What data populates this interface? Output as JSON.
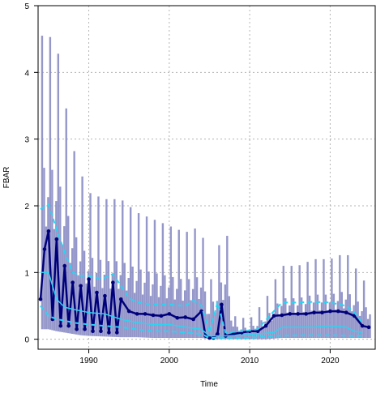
{
  "chart_data": {
    "type": "line",
    "title": "",
    "xlabel": "Time",
    "ylabel": "FBAR",
    "xlim": [
      1983.7,
      2025.6
    ],
    "ylim": [
      -0.15,
      5.0
    ],
    "x_ticks": [
      1990,
      2000,
      2010,
      2020
    ],
    "y_ticks": [
      0,
      1,
      2,
      3,
      4,
      5
    ],
    "grid": true,
    "legend": "none",
    "colors": {
      "interval_band": "#8a8cc4",
      "fbar_line": "#00007a",
      "trend_line": "#2ad4f2",
      "grid": "#b4b4b4",
      "frame": "#000000"
    },
    "interval_range": {
      "x": [
        1985,
        1986,
        1987,
        1988,
        1989,
        1990,
        1992,
        1994,
        1996,
        1998,
        2000,
        2002,
        2004,
        2005,
        2006,
        2007,
        2008,
        2010,
        2012,
        2014,
        2016,
        2018,
        2020,
        2022,
        2024,
        2025
      ],
      "lower": [
        0.15,
        0.12,
        0.1,
        0.08,
        0.06,
        0.05,
        0.04,
        0.03,
        0.03,
        0.02,
        0.02,
        0.02,
        0.02,
        0.0,
        0.0,
        0.0,
        0.0,
        0.0,
        0.0,
        0.02,
        0.02,
        0.02,
        0.02,
        0.02,
        0.02,
        0.02
      ],
      "upper": [
        4.55,
        4.45,
        3.6,
        2.9,
        2.5,
        2.2,
        2.1,
        2.1,
        1.9,
        1.8,
        1.7,
        1.6,
        1.7,
        0.8,
        1.3,
        1.85,
        0.35,
        0.3,
        0.6,
        1.1,
        1.1,
        1.2,
        1.2,
        1.3,
        0.9,
        0.8
      ]
    },
    "series": [
      {
        "x": [
          1984.0,
          1984.5,
          1985.0,
          1985.5,
          1986.0,
          1986.5,
          1987.0,
          1987.5,
          1988.0,
          1988.5,
          1989.0,
          1989.5,
          1990.0,
          1990.5,
          1991.0,
          1991.5,
          1992.0,
          1992.5,
          1993.0,
          1993.5,
          1994.0,
          1995.0,
          1996.0,
          1997.0,
          1998.0,
          1999.0,
          2000.0,
          2001.0,
          2002.0,
          2003.0,
          2004.0,
          2004.5,
          2005.0,
          2005.5,
          2006.0,
          2006.5,
          2007.0,
          2008.0,
          2009.0,
          2010.0,
          2011.0,
          2012.0,
          2013.0,
          2014.0,
          2015.0,
          2016.0,
          2017.0,
          2018.0,
          2019.0,
          2020.0,
          2021.0,
          2022.0,
          2023.0,
          2024.0,
          2024.8
        ],
        "y": [
          0.6,
          1.35,
          1.62,
          0.3,
          1.5,
          0.2,
          1.1,
          0.2,
          0.85,
          0.15,
          0.8,
          0.15,
          0.9,
          0.12,
          0.7,
          0.12,
          0.65,
          0.1,
          0.85,
          0.1,
          0.6,
          0.42,
          0.38,
          0.38,
          0.36,
          0.35,
          0.38,
          0.32,
          0.33,
          0.3,
          0.42,
          0.05,
          0.02,
          0.02,
          0.08,
          0.52,
          0.05,
          0.08,
          0.1,
          0.12,
          0.12,
          0.2,
          0.35,
          0.36,
          0.38,
          0.38,
          0.38,
          0.4,
          0.4,
          0.42,
          0.42,
          0.4,
          0.35,
          0.2,
          0.18
        ]
      },
      {
        "x": [
          1984.0,
          1985.0,
          1986.0,
          1987.0,
          1988.0,
          1990.0,
          1992.0,
          1994.0,
          1996.0,
          1998.0,
          2000.0,
          2002.0,
          2004.0,
          2005.0,
          2006.0,
          2007.0,
          2009.0,
          2011.0,
          2013.0,
          2014.0,
          2016.0,
          2018.0,
          2020.0,
          2022.0,
          2023.0,
          2024.0
        ],
        "y": [
          1.0,
          1.0,
          0.6,
          0.48,
          0.45,
          0.4,
          0.38,
          0.3,
          0.25,
          0.22,
          0.22,
          0.18,
          0.15,
          0.05,
          0.05,
          0.05,
          0.06,
          0.08,
          0.1,
          0.18,
          0.18,
          0.18,
          0.2,
          0.18,
          0.12,
          0.1
        ]
      },
      {
        "x": [
          1984.0,
          1985.0,
          1986.0,
          1987.0,
          1988.0,
          1989.0,
          1990.0,
          1991.0,
          1992.0,
          1993.0,
          1994.0,
          1995.0,
          1996.0,
          1998.0,
          2000.0,
          2002.0,
          2003.0,
          2004.0,
          2005.0,
          2006.0,
          2007.0,
          2009.0,
          2011.0,
          2013.0,
          2014.0,
          2016.0,
          2018.0,
          2020.0,
          2022.0,
          2023.0,
          2024.0
        ],
        "y": [
          1.95,
          2.02,
          1.65,
          1.3,
          1.0,
          0.95,
          0.95,
          0.92,
          0.92,
          0.98,
          0.8,
          0.62,
          0.55,
          0.52,
          0.52,
          0.5,
          0.58,
          0.5,
          0.1,
          0.55,
          0.1,
          0.12,
          0.15,
          0.42,
          0.55,
          0.55,
          0.56,
          0.55,
          0.5,
          0.4,
          0.25
        ]
      },
      {
        "x": [
          1984.0,
          1985.0,
          1986.0,
          1987.0,
          1988.0,
          1990.0,
          1992.0,
          1994.0,
          1996.0,
          1998.0,
          2000.0,
          2002.0,
          2004.0,
          2005.0,
          2007.0,
          2010.0,
          2013.0,
          2016.0,
          2020.0,
          2023.0,
          2024.0
        ],
        "y": [
          0.5,
          0.35,
          0.3,
          0.28,
          0.25,
          0.22,
          0.2,
          0.18,
          0.15,
          0.12,
          0.12,
          0.1,
          0.08,
          0.02,
          0.02,
          0.02,
          0.05,
          0.06,
          0.06,
          0.05,
          0.05
        ]
      }
    ]
  }
}
